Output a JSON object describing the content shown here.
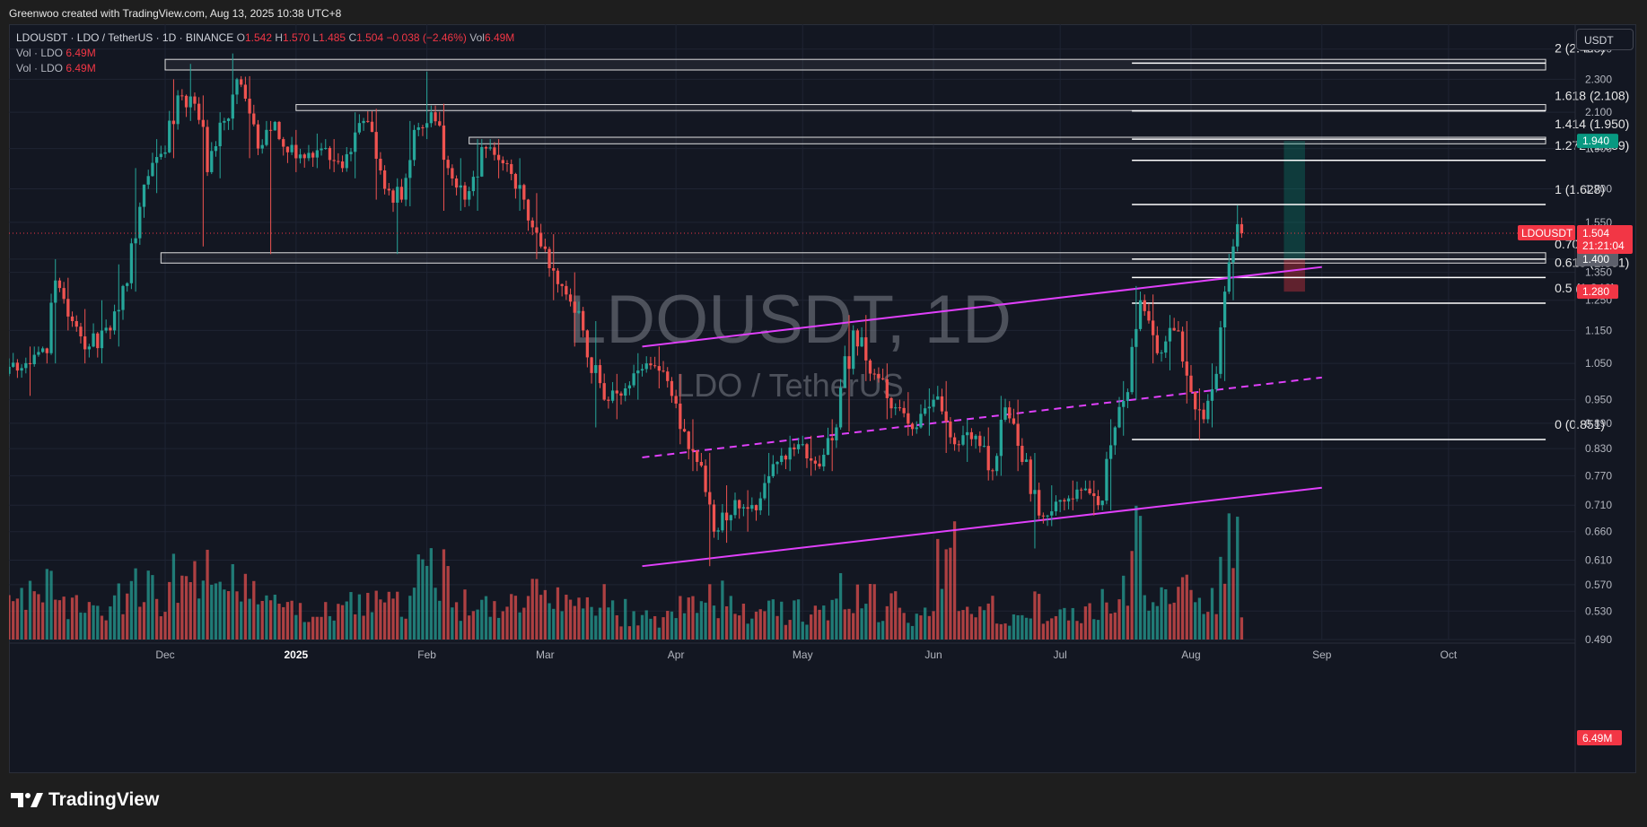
{
  "header": {
    "credit": "Greenwoo created with TradingView.com, Aug 13, 2025 10:38 UTC+8"
  },
  "legend": {
    "symbol_line": "LDOUSDT · LDO / TetherUS · 1D · BINANCE",
    "ohlc": [
      {
        "label": "O",
        "value": "1.542"
      },
      {
        "label": "H",
        "value": "1.570"
      },
      {
        "label": "L",
        "value": "1.485"
      },
      {
        "label": "C",
        "value": "1.504"
      }
    ],
    "change": "−0.038 (−2.46%)",
    "vol_label": "Vol",
    "vol_value": "6.49M",
    "vol_rows": [
      {
        "label": "Vol · LDO",
        "value": "6.49M"
      },
      {
        "label": "Vol · LDO",
        "value": "6.49M"
      }
    ]
  },
  "toolbar": {
    "unit": "USDT"
  },
  "watermark": {
    "title": "LDOUSDT, 1D",
    "subtitle": "LDO / TetherUS"
  },
  "brand": {
    "name": "TradingView"
  },
  "colors": {
    "up": "#26a69a",
    "down": "#ef5350",
    "channel": "#e040fb",
    "fib": "#ffffff",
    "last_price_bg": "#f23645",
    "target_bg": "#089981",
    "stop_bg": "#f23645",
    "level_bg": "#5d606b"
  },
  "chart_data": {
    "type": "candlestick",
    "symbol": "LDOUSDT",
    "interval": "1D",
    "y_scale": "log",
    "ylim": [
      0.49,
      2.58
    ],
    "y_ticks": [
      "2.500",
      "2.300",
      "2.100",
      "1.900",
      "1.700",
      "1.550",
      "1.400",
      "1.350",
      "1.250",
      "1.150",
      "1.050",
      "0.950",
      "0.890",
      "0.830",
      "0.770",
      "0.710",
      "0.660",
      "0.610",
      "0.570",
      "0.530",
      "0.490"
    ],
    "x_labels": [
      "Dec",
      "2025",
      "Feb",
      "Mar",
      "Apr",
      "May",
      "Jun",
      "Jul",
      "Aug",
      "Sep",
      "Oct"
    ],
    "x_label_dates": [
      "2024-12-01",
      "2025-01-01",
      "2025-02-01",
      "2025-03-01",
      "2025-04-01",
      "2025-05-01",
      "2025-06-01",
      "2025-07-01",
      "2025-08-01",
      "2025-09-01",
      "2025-10-01"
    ],
    "x_range": [
      "2024-10-25",
      "2025-10-31"
    ],
    "last_price": {
      "value": "1.504",
      "label": "LDOUSDT",
      "countdown": "21:21:04"
    },
    "price_tags": [
      {
        "value": "1.940",
        "kind": "target"
      },
      {
        "value": "1.400",
        "kind": "level"
      },
      {
        "value": "1.280",
        "kind": "stop"
      }
    ],
    "volume_tag": "6.49M",
    "fib_levels": [
      {
        "ratio": "2",
        "price": 2.405,
        "label": "2 (2.405)"
      },
      {
        "ratio": "1.618",
        "price": 2.108,
        "label": "1.618 (2.108)"
      },
      {
        "ratio": "1.414",
        "price": 1.95,
        "label": "1.414 (1.950)"
      },
      {
        "ratio": "1.272",
        "price": 1.839,
        "label": "1.272 (1.839)"
      },
      {
        "ratio": "1",
        "price": 1.628,
        "label": "1 (1.628)"
      },
      {
        "ratio": "0.707",
        "price": 1.4,
        "label": "0.707 (1.400)"
      },
      {
        "ratio": "0.618",
        "price": 1.331,
        "label": "0.618 (1.331)"
      },
      {
        "ratio": "0.5",
        "price": 1.24,
        "label": "0.5 (1.240)"
      },
      {
        "ratio": "0",
        "price": 0.851,
        "label": "0 (0.851)"
      }
    ],
    "fib_range": [
      "2025-07-18",
      "2025-10-24"
    ],
    "zones": [
      {
        "from": "2024-12-01",
        "to": "2025-10-24",
        "low": 2.36,
        "high": 2.43
      },
      {
        "from": "2025-01-01",
        "to": "2025-10-24",
        "low": 2.11,
        "high": 2.145
      },
      {
        "from": "2025-02-11",
        "to": "2025-10-24",
        "low": 1.925,
        "high": 1.96
      },
      {
        "from": "2024-11-30",
        "to": "2025-10-24",
        "low": 1.385,
        "high": 1.425
      }
    ],
    "channel_lines": [
      {
        "style": "solid",
        "from": [
          "2025-03-24",
          1.1
        ],
        "to": [
          "2025-09-01",
          1.37
        ]
      },
      {
        "style": "dashed",
        "from": [
          "2025-03-24",
          0.81
        ],
        "to": [
          "2025-09-01",
          1.01
        ]
      },
      {
        "style": "solid",
        "from": [
          "2025-03-24",
          0.6
        ],
        "to": [
          "2025-09-01",
          0.745
        ]
      }
    ],
    "position": {
      "entry_date": "2025-08-23",
      "exit_date": "2025-08-28",
      "target": 1.94,
      "entry": 1.4,
      "stop": 1.28
    },
    "candles": [
      {
        "d": "2024-10-25",
        "o": 1.02,
        "h": 1.1,
        "l": 0.96,
        "c": 1.08,
        "v": 38
      },
      {
        "d": "2024-11-04",
        "o": 1.08,
        "h": 1.4,
        "l": 1.05,
        "c": 1.32,
        "v": 35
      },
      {
        "d": "2024-11-06",
        "o": 1.32,
        "h": 1.33,
        "l": 1.15,
        "c": 1.18,
        "v": 22
      },
      {
        "d": "2024-11-10",
        "o": 1.18,
        "h": 1.22,
        "l": 1.05,
        "c": 1.1,
        "v": 28
      },
      {
        "d": "2024-11-14",
        "o": 1.1,
        "h": 1.25,
        "l": 1.05,
        "c": 1.15,
        "v": 24
      },
      {
        "d": "2024-11-19",
        "o": 1.15,
        "h": 1.38,
        "l": 1.1,
        "c": 1.3,
        "v": 30
      },
      {
        "d": "2024-11-22",
        "o": 1.3,
        "h": 1.8,
        "l": 1.28,
        "c": 1.72,
        "v": 40
      },
      {
        "d": "2024-11-27",
        "o": 1.72,
        "h": 1.95,
        "l": 1.68,
        "c": 1.88,
        "v": 36
      },
      {
        "d": "2024-12-02",
        "o": 1.88,
        "h": 2.3,
        "l": 1.85,
        "c": 2.2,
        "v": 45
      },
      {
        "d": "2024-12-05",
        "o": 2.2,
        "h": 2.4,
        "l": 2.05,
        "c": 2.15,
        "v": 42
      },
      {
        "d": "2024-12-09",
        "o": 2.15,
        "h": 2.2,
        "l": 1.45,
        "c": 1.78,
        "v": 60
      },
      {
        "d": "2024-12-12",
        "o": 1.78,
        "h": 2.1,
        "l": 1.75,
        "c": 2.05,
        "v": 30
      },
      {
        "d": "2024-12-16",
        "o": 2.05,
        "h": 2.47,
        "l": 2.0,
        "c": 2.3,
        "v": 38
      },
      {
        "d": "2024-12-19",
        "o": 2.3,
        "h": 2.32,
        "l": 1.85,
        "c": 1.9,
        "v": 40
      },
      {
        "d": "2024-12-24",
        "o": 1.9,
        "h": 2.05,
        "l": 1.42,
        "c": 1.95,
        "v": 32
      },
      {
        "d": "2024-12-29",
        "o": 1.95,
        "h": 2.0,
        "l": 1.78,
        "c": 1.85,
        "v": 20
      },
      {
        "d": "2025-01-04",
        "o": 1.85,
        "h": 1.98,
        "l": 1.8,
        "c": 1.9,
        "v": 18
      },
      {
        "d": "2025-01-08",
        "o": 1.9,
        "h": 1.95,
        "l": 1.78,
        "c": 1.8,
        "v": 22
      },
      {
        "d": "2025-01-13",
        "o": 1.8,
        "h": 2.1,
        "l": 1.75,
        "c": 2.05,
        "v": 28
      },
      {
        "d": "2025-01-18",
        "o": 2.05,
        "h": 2.12,
        "l": 1.65,
        "c": 1.7,
        "v": 25
      },
      {
        "d": "2025-01-23",
        "o": 1.7,
        "h": 1.75,
        "l": 1.42,
        "c": 1.65,
        "v": 26
      },
      {
        "d": "2025-01-27",
        "o": 1.65,
        "h": 2.05,
        "l": 1.62,
        "c": 2.0,
        "v": 30
      },
      {
        "d": "2025-01-30",
        "o": 2.0,
        "h": 2.35,
        "l": 1.95,
        "c": 2.1,
        "v": 45
      },
      {
        "d": "2025-02-03",
        "o": 2.1,
        "h": 2.15,
        "l": 1.6,
        "c": 1.8,
        "v": 55
      },
      {
        "d": "2025-02-07",
        "o": 1.8,
        "h": 1.85,
        "l": 1.6,
        "c": 1.65,
        "v": 28
      },
      {
        "d": "2025-02-11",
        "o": 1.65,
        "h": 1.95,
        "l": 1.6,
        "c": 1.9,
        "v": 22
      },
      {
        "d": "2025-02-16",
        "o": 1.9,
        "h": 1.95,
        "l": 1.75,
        "c": 1.82,
        "v": 20
      },
      {
        "d": "2025-02-21",
        "o": 1.82,
        "h": 1.85,
        "l": 1.6,
        "c": 1.65,
        "v": 24
      },
      {
        "d": "2025-02-25",
        "o": 1.65,
        "h": 1.68,
        "l": 1.4,
        "c": 1.45,
        "v": 30
      },
      {
        "d": "2025-03-01",
        "o": 1.45,
        "h": 1.5,
        "l": 1.25,
        "c": 1.3,
        "v": 28
      },
      {
        "d": "2025-03-06",
        "o": 1.3,
        "h": 1.35,
        "l": 1.1,
        "c": 1.15,
        "v": 24
      },
      {
        "d": "2025-03-11",
        "o": 1.15,
        "h": 1.18,
        "l": 0.88,
        "c": 0.95,
        "v": 32
      },
      {
        "d": "2025-03-16",
        "o": 0.95,
        "h": 1.02,
        "l": 0.9,
        "c": 0.98,
        "v": 20
      },
      {
        "d": "2025-03-21",
        "o": 0.98,
        "h": 1.08,
        "l": 0.95,
        "c": 1.05,
        "v": 18
      },
      {
        "d": "2025-03-26",
        "o": 1.05,
        "h": 1.1,
        "l": 0.98,
        "c": 1.0,
        "v": 16
      },
      {
        "d": "2025-03-31",
        "o": 1.0,
        "h": 1.02,
        "l": 0.84,
        "c": 0.87,
        "v": 22
      },
      {
        "d": "2025-04-04",
        "o": 0.87,
        "h": 0.9,
        "l": 0.78,
        "c": 0.8,
        "v": 24
      },
      {
        "d": "2025-04-07",
        "o": 0.8,
        "h": 0.82,
        "l": 0.6,
        "c": 0.66,
        "v": 42
      },
      {
        "d": "2025-04-11",
        "o": 0.66,
        "h": 0.75,
        "l": 0.64,
        "c": 0.72,
        "v": 30
      },
      {
        "d": "2025-04-16",
        "o": 0.72,
        "h": 0.74,
        "l": 0.66,
        "c": 0.7,
        "v": 18
      },
      {
        "d": "2025-04-21",
        "o": 0.7,
        "h": 0.82,
        "l": 0.69,
        "c": 0.8,
        "v": 24
      },
      {
        "d": "2025-04-26",
        "o": 0.8,
        "h": 0.86,
        "l": 0.78,
        "c": 0.84,
        "v": 20
      },
      {
        "d": "2025-05-01",
        "o": 0.84,
        "h": 0.86,
        "l": 0.77,
        "c": 0.79,
        "v": 18
      },
      {
        "d": "2025-05-06",
        "o": 0.79,
        "h": 0.9,
        "l": 0.78,
        "c": 0.88,
        "v": 22
      },
      {
        "d": "2025-05-10",
        "o": 0.88,
        "h": 1.2,
        "l": 0.87,
        "c": 1.15,
        "v": 40
      },
      {
        "d": "2025-05-14",
        "o": 1.15,
        "h": 1.2,
        "l": 1.0,
        "c": 1.02,
        "v": 30
      },
      {
        "d": "2025-05-19",
        "o": 1.02,
        "h": 1.05,
        "l": 0.9,
        "c": 0.93,
        "v": 24
      },
      {
        "d": "2025-05-24",
        "o": 0.93,
        "h": 0.97,
        "l": 0.86,
        "c": 0.88,
        "v": 20
      },
      {
        "d": "2025-05-29",
        "o": 0.88,
        "h": 0.98,
        "l": 0.86,
        "c": 0.95,
        "v": 22
      },
      {
        "d": "2025-06-02",
        "o": 0.95,
        "h": 1.0,
        "l": 0.82,
        "c": 0.84,
        "v": 60
      },
      {
        "d": "2025-06-07",
        "o": 0.84,
        "h": 0.9,
        "l": 0.8,
        "c": 0.86,
        "v": 28
      },
      {
        "d": "2025-06-12",
        "o": 0.86,
        "h": 0.88,
        "l": 0.76,
        "c": 0.78,
        "v": 24
      },
      {
        "d": "2025-06-16",
        "o": 0.78,
        "h": 0.96,
        "l": 0.77,
        "c": 0.93,
        "v": 22
      },
      {
        "d": "2025-06-19",
        "o": 0.93,
        "h": 0.95,
        "l": 0.78,
        "c": 0.8,
        "v": 20
      },
      {
        "d": "2025-06-23",
        "o": 0.8,
        "h": 0.82,
        "l": 0.63,
        "c": 0.69,
        "v": 26
      },
      {
        "d": "2025-06-27",
        "o": 0.69,
        "h": 0.75,
        "l": 0.67,
        "c": 0.72,
        "v": 18
      },
      {
        "d": "2025-07-02",
        "o": 0.72,
        "h": 0.76,
        "l": 0.7,
        "c": 0.74,
        "v": 16
      },
      {
        "d": "2025-07-07",
        "o": 0.74,
        "h": 0.76,
        "l": 0.69,
        "c": 0.71,
        "v": 20
      },
      {
        "d": "2025-07-11",
        "o": 0.71,
        "h": 0.9,
        "l": 0.7,
        "c": 0.88,
        "v": 30
      },
      {
        "d": "2025-07-15",
        "o": 0.88,
        "h": 1.0,
        "l": 0.86,
        "c": 0.97,
        "v": 42
      },
      {
        "d": "2025-07-18",
        "o": 0.97,
        "h": 1.3,
        "l": 0.95,
        "c": 1.25,
        "v": 70
      },
      {
        "d": "2025-07-21",
        "o": 1.25,
        "h": 1.27,
        "l": 1.05,
        "c": 1.08,
        "v": 40
      },
      {
        "d": "2025-07-25",
        "o": 1.08,
        "h": 1.2,
        "l": 1.03,
        "c": 1.15,
        "v": 30
      },
      {
        "d": "2025-07-29",
        "o": 1.15,
        "h": 1.18,
        "l": 0.94,
        "c": 0.97,
        "v": 34
      },
      {
        "d": "2025-08-02",
        "o": 0.97,
        "h": 0.98,
        "l": 0.85,
        "c": 0.9,
        "v": 36
      },
      {
        "d": "2025-08-05",
        "o": 0.9,
        "h": 1.05,
        "l": 0.88,
        "c": 1.02,
        "v": 32
      },
      {
        "d": "2025-08-08",
        "o": 1.02,
        "h": 1.3,
        "l": 1.0,
        "c": 1.28,
        "v": 50
      },
      {
        "d": "2025-08-10",
        "o": 1.28,
        "h": 1.48,
        "l": 1.25,
        "c": 1.45,
        "v": 78
      },
      {
        "d": "2025-08-12",
        "o": 1.45,
        "h": 1.625,
        "l": 1.43,
        "c": 1.542,
        "v": 85
      },
      {
        "d": "2025-08-13",
        "o": 1.542,
        "h": 1.57,
        "l": 1.485,
        "c": 1.504,
        "v": 12
      }
    ]
  }
}
